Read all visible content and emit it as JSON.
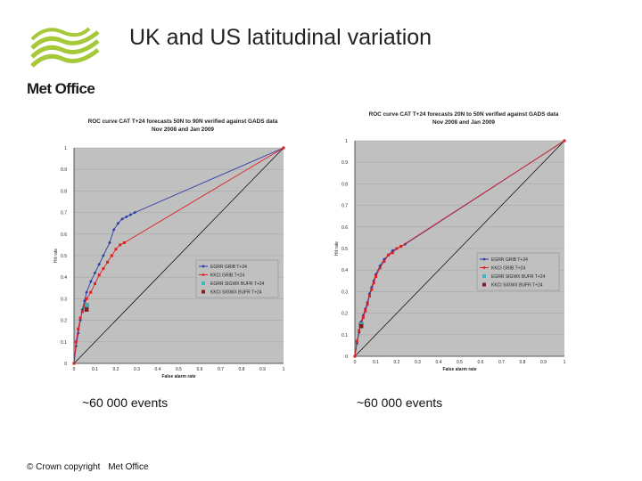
{
  "slide": {
    "title": "UK and US latitudinal variation",
    "captions": [
      "~60 000 events",
      "~60 000 events"
    ],
    "footer": {
      "copyright": "© Crown copyright",
      "org": "Met Office"
    }
  },
  "logo": {
    "text": "Met Office",
    "color": "#a6c93a"
  },
  "colors": {
    "plot_bg": "#c0c0c0",
    "series": [
      "#2b3aa8",
      "#e02020",
      "#40b8c0",
      "#8b1a1a"
    ],
    "diagonal": "#000000"
  },
  "chart_data": [
    {
      "type": "line",
      "title": "ROC curve CAT T+24 forecasts 50N to 90N verified against GADS data",
      "subtitle": "Nov 2008 and Jan 2009",
      "xlabel": "False alarm rate",
      "ylabel": "Hit rate",
      "xlim": [
        0,
        1
      ],
      "ylim": [
        0,
        1
      ],
      "xticks": [
        "0",
        "0.1",
        "0.2",
        "0.3",
        "0.4",
        "0.5",
        "0.6",
        "0.7",
        "0.8",
        "0.9",
        "1"
      ],
      "yticks": [
        "0",
        "0.1",
        "0.2",
        "0.3",
        "0.4",
        "0.5",
        "0.6",
        "0.7",
        "0.8",
        "0.9",
        "1"
      ],
      "legend_position": "center-right",
      "series": [
        {
          "name": "EGRR GRIB T+24",
          "x": [
            0,
            0.01,
            0.02,
            0.03,
            0.04,
            0.05,
            0.06,
            0.08,
            0.1,
            0.12,
            0.14,
            0.17,
            0.19,
            0.21,
            0.23,
            0.25,
            0.27,
            0.29,
            1
          ],
          "y": [
            0,
            0.08,
            0.14,
            0.2,
            0.25,
            0.29,
            0.33,
            0.38,
            0.42,
            0.46,
            0.5,
            0.56,
            0.62,
            0.65,
            0.67,
            0.68,
            0.69,
            0.7,
            1
          ]
        },
        {
          "name": "KKCI GRIB T+24",
          "x": [
            0,
            0.01,
            0.02,
            0.03,
            0.04,
            0.05,
            0.06,
            0.08,
            0.1,
            0.12,
            0.14,
            0.16,
            0.18,
            0.2,
            0.22,
            0.24,
            1
          ],
          "y": [
            0,
            0.1,
            0.16,
            0.21,
            0.24,
            0.27,
            0.3,
            0.33,
            0.37,
            0.41,
            0.44,
            0.47,
            0.5,
            0.53,
            0.55,
            0.56,
            1
          ]
        },
        {
          "name": "EGRR SIGWX BUFR T+24",
          "x": [
            0.06
          ],
          "y": [
            0.27
          ]
        },
        {
          "name": "KKCI SIGWX BUFR T+24",
          "x": [
            0.06
          ],
          "y": [
            0.25
          ]
        }
      ]
    },
    {
      "type": "line",
      "title": "ROC curve CAT T+24 forecasts 20N to 50N verified against GADS data",
      "subtitle": "Nov 2008 and Jan 2009",
      "xlabel": "False alarm rate",
      "ylabel": "Hit rate",
      "xlim": [
        0,
        1
      ],
      "ylim": [
        0,
        1
      ],
      "xticks": [
        "0",
        "0.1",
        "0.2",
        "0.3",
        "0.4",
        "0.5",
        "0.6",
        "0.7",
        "0.8",
        "0.9",
        "1"
      ],
      "yticks": [
        "0",
        "0.1",
        "0.2",
        "0.3",
        "0.4",
        "0.5",
        "0.6",
        "0.7",
        "0.8",
        "0.9",
        "1"
      ],
      "legend_position": "center-right",
      "series": [
        {
          "name": "EGRR GRIB T+24",
          "x": [
            0,
            0.01,
            0.02,
            0.03,
            0.04,
            0.05,
            0.06,
            0.07,
            0.08,
            0.09,
            0.1,
            0.12,
            0.14,
            0.16,
            0.18,
            0.2,
            0.22,
            0.24,
            1
          ],
          "y": [
            0,
            0.06,
            0.11,
            0.16,
            0.19,
            0.22,
            0.25,
            0.29,
            0.32,
            0.35,
            0.38,
            0.42,
            0.45,
            0.47,
            0.49,
            0.5,
            0.51,
            0.52,
            1
          ]
        },
        {
          "name": "KKCI GRIB T+24",
          "x": [
            0,
            0.01,
            0.02,
            0.03,
            0.04,
            0.05,
            0.06,
            0.07,
            0.08,
            0.09,
            0.1,
            0.12,
            0.14,
            0.16,
            0.18,
            0.2,
            0.22,
            1
          ],
          "y": [
            0,
            0.07,
            0.12,
            0.15,
            0.18,
            0.21,
            0.24,
            0.28,
            0.31,
            0.34,
            0.37,
            0.41,
            0.44,
            0.47,
            0.48,
            0.5,
            0.51,
            1
          ]
        },
        {
          "name": "EGRR SIGWX BUFR T+24",
          "x": [
            0.03
          ],
          "y": [
            0.15
          ]
        },
        {
          "name": "KKCI SIGWX BUFR T+24",
          "x": [
            0.03
          ],
          "y": [
            0.14
          ]
        }
      ]
    }
  ]
}
